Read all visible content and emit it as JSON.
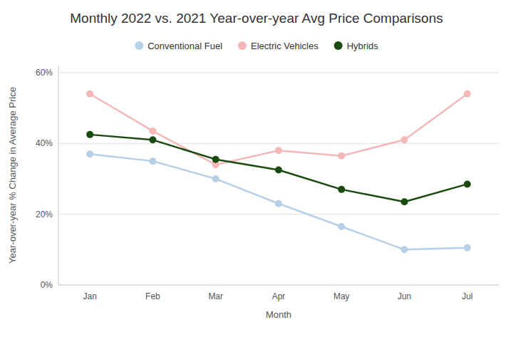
{
  "chart_data": {
    "type": "line",
    "title": "Monthly 2022 vs. 2021 Year-over-year Avg Price Comparisons",
    "xlabel": "Month",
    "ylabel": "Year-over-year % Change in Average Price",
    "categories": [
      "Jan",
      "Feb",
      "Mar",
      "Apr",
      "May",
      "Jun",
      "Jul"
    ],
    "series": [
      {
        "name": "Conventional Fuel",
        "color": "#b8cfe8",
        "values": [
          37,
          35,
          30,
          23,
          16.5,
          10,
          10.5
        ]
      },
      {
        "name": "Electric Vehicles",
        "color": "#f4b8b8",
        "values": [
          54,
          43.5,
          34,
          38,
          36.5,
          41,
          54
        ]
      },
      {
        "name": "Hybrids",
        "color": "#1a4a10",
        "values": [
          42.5,
          41,
          35.5,
          32.5,
          27,
          23.5,
          28.5
        ]
      }
    ],
    "ylim": [
      0,
      62
    ],
    "yticks": [
      {
        "value": 0,
        "label": "0%"
      },
      {
        "value": 20,
        "label": "20%"
      },
      {
        "value": 40,
        "label": "40%"
      },
      {
        "value": 60,
        "label": "60%"
      }
    ],
    "grid": true,
    "legend": "top",
    "marker": "circle"
  }
}
